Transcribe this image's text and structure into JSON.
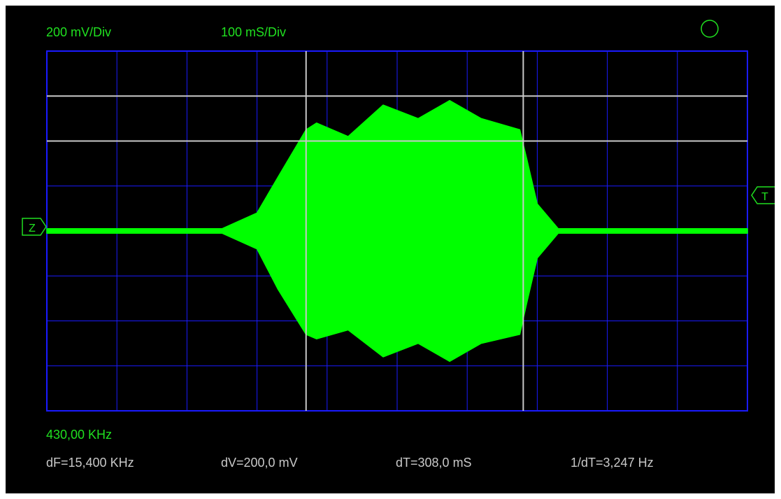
{
  "scope": {
    "volts_per_div": "200 mV/Div",
    "time_per_div": "100 mS/Div",
    "frequency": "430,00 KHz",
    "zero_marker": "Z",
    "trigger_marker": "T",
    "status_indicator": "circle-icon"
  },
  "measurements": {
    "df": "dF=15,400 KHz",
    "dv": "dV=200,0 mV",
    "dt": "dT=308,0 mS",
    "inv_dt": "1/dT=3,247 Hz"
  },
  "colors": {
    "background": "#000000",
    "grid": "#1a1aff",
    "trace": "#00ff00",
    "cursor": "#c8c8c8",
    "label_green": "#20e020",
    "label_grey": "#c8c8c8"
  },
  "chart_data": {
    "type": "area",
    "grid": true,
    "divisions": {
      "x": 10,
      "y": 8
    },
    "units": {
      "x": "div",
      "y": "div"
    },
    "ylim": [
      -4,
      4
    ],
    "xlim": [
      0,
      10
    ],
    "cursors": {
      "vertical_div": [
        3.7,
        6.8
      ],
      "horizontal_div": [
        3.0,
        2.0
      ]
    },
    "envelope": {
      "x": [
        0,
        2.5,
        3.0,
        3.3,
        3.7,
        3.85,
        4.3,
        4.8,
        5.3,
        5.75,
        6.2,
        6.75,
        6.85,
        7.0,
        7.3,
        10
      ],
      "upper": [
        0.05,
        0.05,
        0.4,
        1.2,
        2.25,
        2.4,
        2.1,
        2.8,
        2.5,
        2.9,
        2.5,
        2.25,
        1.6,
        0.6,
        0.05,
        0.05
      ],
      "lower": [
        -0.05,
        -0.05,
        -0.4,
        -1.3,
        -2.3,
        -2.4,
        -2.2,
        -2.8,
        -2.5,
        -2.9,
        -2.5,
        -2.3,
        -1.6,
        -0.6,
        -0.05,
        -0.05
      ]
    }
  }
}
